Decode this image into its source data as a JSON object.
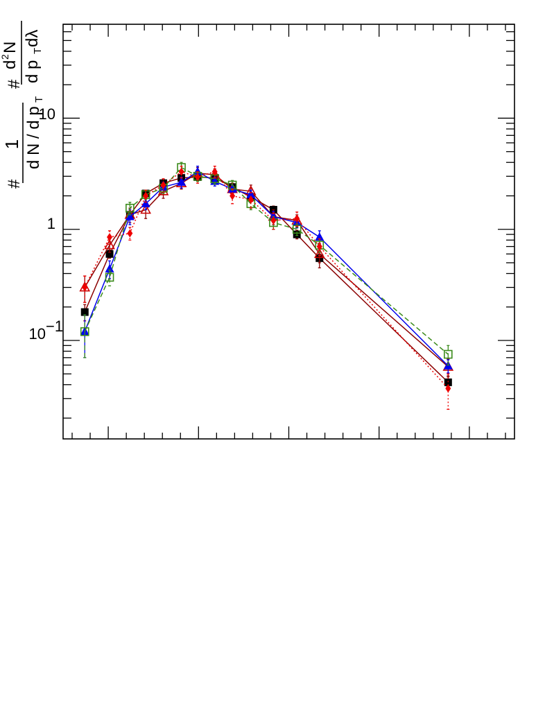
{
  "chart_data": {
    "type": "scatter",
    "y_scale": "log",
    "ylim": [
      0.013,
      70
    ],
    "xlim": [
      0,
      1
    ],
    "grid": false,
    "x_tick_labels": [],
    "y_tick_labels": [
      {
        "value": 0.1,
        "base": "10",
        "exp": "−1"
      },
      {
        "value": 1,
        "text": "1"
      },
      {
        "value": 10,
        "text": "10"
      }
    ],
    "ylabel": {
      "prefix": "#",
      "frac1_num": "1",
      "frac1_den": "d N / d p",
      "frac1_den_sub": "T",
      "mid": "#",
      "frac2_num": "d",
      "frac2_num_sup": "2",
      "frac2_num_tail": "N",
      "frac2_den": "d p",
      "frac2_den_sub": "T",
      "frac2_den_tail": " dλ"
    },
    "series": [
      {
        "marker": "square-filled",
        "color": "#000000",
        "line": "solid",
        "line_color": "#8b0000",
        "x": [
          0.048,
          0.103,
          0.148,
          0.183,
          0.222,
          0.262,
          0.298,
          0.336,
          0.375,
          0.416,
          0.466,
          0.518,
          0.568,
          0.853
        ],
        "y": [
          0.18,
          0.6,
          1.35,
          2.1,
          2.6,
          2.9,
          2.95,
          2.9,
          2.4,
          1.95,
          1.5,
          0.9,
          0.55,
          0.042
        ],
        "err": [
          0.03,
          0.05,
          0.1,
          0.15,
          0.2,
          0.2,
          0.2,
          0.2,
          0.2,
          0.18,
          0.12,
          0.08,
          0.05,
          0.005
        ]
      },
      {
        "marker": "triangle-open",
        "color": "#cc0000",
        "line": "solid",
        "line_color": "#8b0000",
        "x": [
          0.048,
          0.103,
          0.148,
          0.183,
          0.222,
          0.262,
          0.298,
          0.336,
          0.375,
          0.416,
          0.466,
          0.518,
          0.568,
          0.853
        ],
        "y": [
          0.3,
          0.72,
          1.35,
          1.5,
          2.2,
          2.6,
          3.2,
          3.1,
          2.3,
          2.2,
          1.3,
          1.2,
          0.6,
          0.058
        ],
        "err": [
          0.08,
          0.1,
          0.2,
          0.25,
          0.3,
          0.3,
          0.4,
          0.4,
          0.3,
          0.3,
          0.2,
          0.15,
          0.15,
          0.01
        ]
      },
      {
        "marker": "triangle-filled",
        "color": "#0000ee",
        "line": "solid",
        "line_color": "#0000ee",
        "x": [
          0.048,
          0.103,
          0.148,
          0.183,
          0.222,
          0.262,
          0.298,
          0.336,
          0.375,
          0.416,
          0.466,
          0.518,
          0.568,
          0.853
        ],
        "y": [
          0.12,
          0.44,
          1.3,
          1.7,
          2.4,
          2.65,
          3.3,
          2.7,
          2.3,
          2.05,
          1.3,
          1.15,
          0.85,
          0.059
        ],
        "err": [
          0.05,
          0.08,
          0.2,
          0.2,
          0.25,
          0.3,
          0.4,
          0.25,
          0.2,
          0.2,
          0.15,
          0.12,
          0.12,
          0.008
        ]
      },
      {
        "marker": "square-open",
        "color": "#3a8a1a",
        "line": "dashed",
        "line_color": "#3a8a1a",
        "x": [
          0.048,
          0.103,
          0.148,
          0.183,
          0.222,
          0.262,
          0.298,
          0.336,
          0.375,
          0.416,
          0.466,
          0.518,
          0.568,
          0.853
        ],
        "y": [
          0.12,
          0.37,
          1.55,
          2.05,
          2.35,
          3.6,
          3.0,
          2.85,
          2.5,
          1.7,
          1.15,
          1.0,
          0.72,
          0.075
        ],
        "err": [
          0.05,
          0.06,
          0.2,
          0.2,
          0.25,
          0.4,
          0.3,
          0.3,
          0.25,
          0.2,
          0.15,
          0.12,
          0.1,
          0.015
        ]
      },
      {
        "marker": "diamond-filled",
        "color": "#ee0000",
        "line": "dotted",
        "line_color": "#ee0000",
        "x": [
          0.048,
          0.103,
          0.148,
          0.183,
          0.222,
          0.262,
          0.298,
          0.336,
          0.375,
          0.416,
          0.466,
          0.518,
          0.568,
          0.853
        ],
        "y": [
          0.3,
          0.85,
          0.92,
          2.0,
          2.5,
          3.3,
          2.95,
          3.3,
          2.0,
          1.85,
          1.2,
          1.25,
          0.7,
          0.037
        ],
        "err": [
          0.08,
          0.12,
          0.12,
          0.25,
          0.35,
          0.4,
          0.35,
          0.4,
          0.3,
          0.3,
          0.2,
          0.18,
          0.12,
          0.013
        ]
      }
    ]
  }
}
